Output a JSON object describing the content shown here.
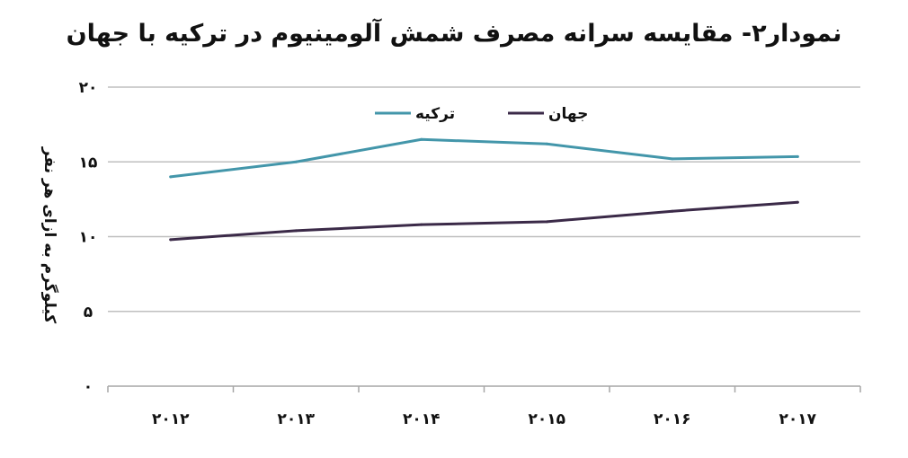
{
  "chart_data": {
    "type": "line",
    "title": "نمودار۲- مقایسه سرانه مصرف شمش آلومینیوم در ترکیه با جهان",
    "ylabel": "کیلوگرم به ازای هر نفر",
    "xlabel": "",
    "categories": [
      "۲۰۱۲",
      "۲۰۱۳",
      "۲۰۱۴",
      "۲۰۱۵",
      "۲۰۱۶",
      "۲۰۱۷"
    ],
    "y_ticks": [
      {
        "value": 0,
        "label": "۰"
      },
      {
        "value": 5,
        "label": "۵"
      },
      {
        "value": 10,
        "label": "۱۰"
      },
      {
        "value": 15,
        "label": "۱۵"
      },
      {
        "value": 20,
        "label": "۲۰"
      }
    ],
    "ylim": [
      0,
      20
    ],
    "grid": true,
    "legend_position": "top-center",
    "series": [
      {
        "name": "ترکیه",
        "color": "#4396aa",
        "values": [
          14.0,
          15.0,
          16.5,
          16.2,
          15.2,
          15.35
        ]
      },
      {
        "name": "جهان",
        "color": "#3b2a48",
        "values": [
          9.8,
          10.4,
          10.8,
          11.0,
          11.7,
          12.3
        ]
      }
    ]
  }
}
